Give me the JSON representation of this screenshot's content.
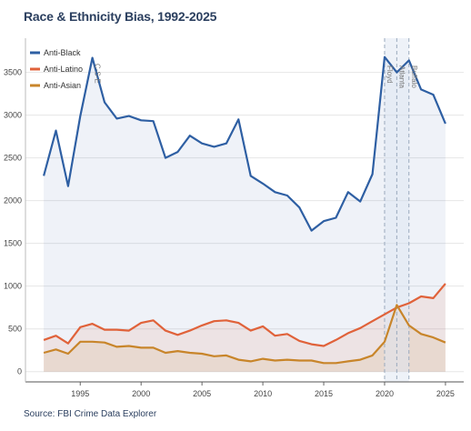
{
  "title": "Race & Ethnicity Bias, 1992-2025",
  "source": "Source: FBI Crime Data Explorer",
  "chart_data": {
    "type": "line",
    "title": "Race & Ethnicity Bias, 1992-2025",
    "xlabel": "",
    "ylabel": "",
    "x": [
      1992,
      1993,
      1994,
      1995,
      1996,
      1997,
      1998,
      1999,
      2000,
      2001,
      2002,
      2003,
      2004,
      2005,
      2006,
      2007,
      2008,
      2009,
      2010,
      2011,
      2012,
      2013,
      2014,
      2015,
      2016,
      2017,
      2018,
      2019,
      2020,
      2021,
      2022,
      2023,
      2024,
      2025
    ],
    "xlim": [
      1990.5,
      2026.5
    ],
    "ylim": [
      -120,
      3900
    ],
    "x_ticks": [
      "1995",
      "2000",
      "2005",
      "2010",
      "2015",
      "2020",
      "2025"
    ],
    "y_ticks": [
      "0",
      "500",
      "1000",
      "1500",
      "2000",
      "2500",
      "3000",
      "3500"
    ],
    "legend_position": "top-left",
    "series": [
      {
        "name": "Anti-Black",
        "color": "#2e5fa3",
        "values": [
          2290,
          2820,
          2170,
          2990,
          3670,
          3150,
          2960,
          2990,
          2940,
          2930,
          2500,
          2570,
          2760,
          2670,
          2630,
          2670,
          2950,
          2290,
          2200,
          2100,
          2060,
          1920,
          1650,
          1760,
          1800,
          2100,
          1990,
          2310,
          3680,
          3500,
          3640,
          3300,
          3240,
          2900
        ]
      },
      {
        "name": "Anti-Latino",
        "color": "#e0623a",
        "values": [
          370,
          420,
          330,
          520,
          560,
          490,
          490,
          480,
          570,
          600,
          480,
          430,
          480,
          540,
          590,
          600,
          570,
          480,
          530,
          420,
          440,
          360,
          320,
          300,
          370,
          450,
          510,
          590,
          670,
          750,
          800,
          880,
          860,
          1030
        ]
      },
      {
        "name": "Anti-Asian",
        "color": "#c8852a",
        "values": [
          220,
          260,
          210,
          350,
          350,
          340,
          290,
          300,
          280,
          280,
          220,
          240,
          220,
          210,
          180,
          190,
          140,
          120,
          150,
          130,
          140,
          130,
          130,
          100,
          100,
          120,
          140,
          190,
          350,
          780,
          540,
          440,
          400,
          340
        ]
      }
    ],
    "annotations": [
      {
        "x": 1996,
        "label": "C-S-E"
      },
      {
        "x": 2020,
        "label": "Floyd"
      },
      {
        "x": 2021,
        "label": "Atlanta"
      },
      {
        "x": 2022,
        "label": "Buffalo"
      }
    ]
  }
}
